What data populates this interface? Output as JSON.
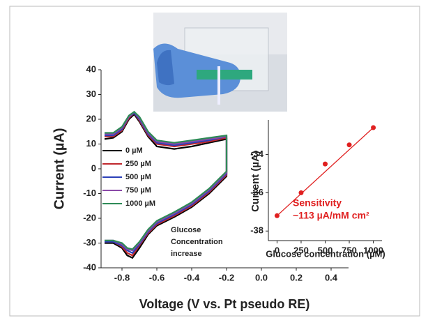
{
  "chart_data": [
    {
      "type": "line",
      "x_label": "Voltage (V vs. Pt pseudo RE)",
      "y_label": "Current (µA)",
      "x": [
        -0.9,
        -0.85,
        -0.8,
        -0.76,
        -0.73,
        -0.7,
        -0.65,
        -0.6,
        -0.5,
        -0.4,
        -0.3,
        -0.2,
        -0.2,
        -0.3,
        -0.4,
        -0.5,
        -0.6,
        -0.65,
        -0.7,
        -0.74,
        -0.77,
        -0.8,
        -0.85,
        -0.9
      ],
      "series": [
        {
          "name": "0 µM",
          "color": "#000000",
          "values": [
            12,
            12.5,
            15,
            20,
            22,
            19,
            13,
            9,
            8,
            9,
            10.5,
            12,
            -3,
            -10,
            -15.5,
            -19.5,
            -23,
            -26.5,
            -32,
            -36,
            -35,
            -32,
            -30,
            -30
          ]
        },
        {
          "name": "250 µM",
          "color": "#c0282d",
          "values": [
            13,
            13,
            15.5,
            20.5,
            22.5,
            19.5,
            13.5,
            10,
            9,
            10,
            11,
            12.5,
            -2.5,
            -9.5,
            -15,
            -19,
            -22.5,
            -26,
            -31,
            -35,
            -34,
            -31.5,
            -29.5,
            -29.5
          ]
        },
        {
          "name": "500 µM",
          "color": "#2a3fb8",
          "values": [
            13.5,
            13.5,
            16,
            21,
            22.5,
            20,
            14,
            10.5,
            9.5,
            10.5,
            11.5,
            13,
            -2,
            -9,
            -14.5,
            -18.5,
            -22,
            -25.5,
            -30.5,
            -34,
            -33,
            -31,
            -29.5,
            -29.5
          ]
        },
        {
          "name": "750 µM",
          "color": "#8a4aa8",
          "values": [
            14,
            14,
            16.5,
            21,
            23,
            20.5,
            14.5,
            11,
            10,
            11,
            12,
            13,
            -1.5,
            -8.5,
            -14,
            -18,
            -21.5,
            -25,
            -30,
            -33,
            -32.5,
            -30.5,
            -29,
            -29
          ]
        },
        {
          "name": "1000 µM",
          "color": "#2e8b57",
          "values": [
            14.5,
            14.5,
            17,
            21.5,
            23,
            21,
            15,
            11.5,
            10.5,
            11.5,
            12.5,
            13.5,
            -1,
            -8,
            -13.5,
            -17.5,
            -21,
            -24.5,
            -29.5,
            -32.5,
            -32,
            -30,
            -29,
            -29
          ]
        }
      ],
      "xlim": [
        -0.92,
        0.5
      ],
      "xticks": [
        -0.8,
        -0.6,
        -0.4,
        -0.2,
        {
          "value": 0,
          "label": "0.0"
        },
        0.2,
        0.4
      ],
      "ylim": [
        -40,
        40
      ],
      "yticks": [
        -40,
        -30,
        -20,
        -10,
        0,
        10,
        20,
        30,
        40
      ],
      "annotation": [
        "Glucose",
        "Concentration",
        "increase"
      ]
    },
    {
      "type": "scatter",
      "x_label": "Glucose concentration (µM)",
      "y_label": "Current (µA)",
      "x": [
        0,
        250,
        500,
        750,
        1000
      ],
      "values": [
        -37.2,
        -36.0,
        -34.5,
        -33.5,
        -32.6
      ],
      "color": "#e02020",
      "fit": {
        "x": [
          0,
          1000
        ],
        "values": [
          -37.2,
          -32.6
        ]
      },
      "xlim": [
        -90,
        1090
      ],
      "xticks": [
        0,
        250,
        500,
        750,
        1000
      ],
      "ylim": [
        -38.5,
        -32.2
      ],
      "yticks": [
        -38,
        -36,
        -34
      ],
      "annotation": [
        "Sensitivity",
        "~113 µA/mM cm²"
      ]
    }
  ]
}
